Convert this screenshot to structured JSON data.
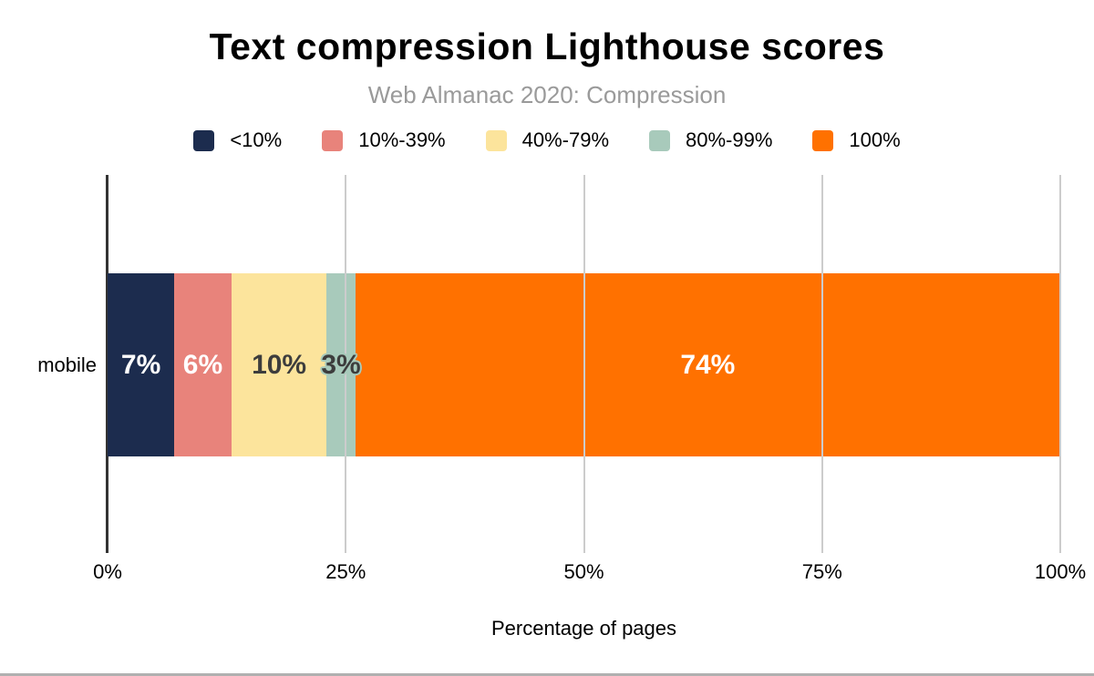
{
  "chart_data": {
    "type": "bar",
    "orientation": "horizontal",
    "stacked": true,
    "title": "Text compression Lighthouse scores",
    "subtitle": "Web Almanac 2020: Compression",
    "xlabel": "Percentage of pages",
    "categories": [
      "mobile"
    ],
    "xlim": [
      0,
      100
    ],
    "x_ticks": [
      "0%",
      "25%",
      "50%",
      "75%",
      "100%"
    ],
    "x_tick_values": [
      0,
      25,
      50,
      75,
      100
    ],
    "grid": true,
    "legend_position": "top",
    "series": [
      {
        "name": "<10%",
        "values": [
          7
        ],
        "color": "#1c2c4e",
        "data_label": "7%",
        "label_color": "#ffffff",
        "label_halo": false
      },
      {
        "name": "10%-39%",
        "values": [
          6
        ],
        "color": "#e8837b",
        "data_label": "6%",
        "label_color": "#ffffff",
        "label_halo": false
      },
      {
        "name": "40%-79%",
        "values": [
          10
        ],
        "color": "#fce49c",
        "data_label": "10%",
        "label_color": "#3d3d3d",
        "label_halo": false
      },
      {
        "name": "80%-99%",
        "values": [
          3
        ],
        "color": "#a8cabb",
        "data_label": "3%",
        "label_color": "#3d3d3d",
        "label_halo": true
      },
      {
        "name": "100%",
        "values": [
          74
        ],
        "color": "#ff7100",
        "data_label": "74%",
        "label_color": "#ffffff",
        "label_halo": false
      }
    ]
  },
  "style": {
    "axis_color": "#333333",
    "grid_color": "#cccccc",
    "title_color": "#000000",
    "subtitle_color": "#9a9a9a",
    "divider_color": "#b0b0b0"
  }
}
